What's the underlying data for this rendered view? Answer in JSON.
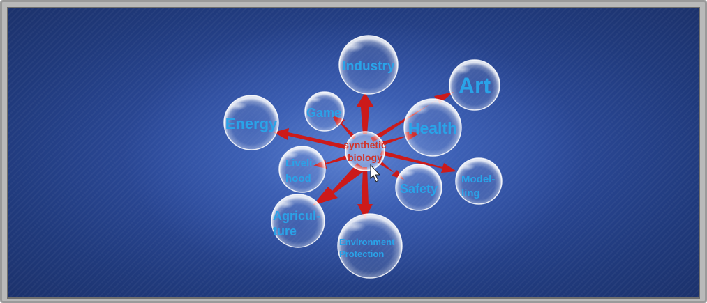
{
  "diagram": {
    "center": {
      "line1": "synthetic",
      "line2": "biology"
    },
    "nodes": {
      "industry": "Industry",
      "art": "Art",
      "game": "Game",
      "health": "Health",
      "energy": "Energy",
      "livelihood": [
        "Liveli-",
        "hood"
      ],
      "safety": "Safety",
      "modeling": [
        "Model-",
        "ling"
      ],
      "agriculture": [
        "Agricul-",
        "ture"
      ],
      "environment": [
        "Environment",
        "Protection"
      ]
    }
  },
  "colors": {
    "label": "#2aa3e8",
    "center_label": "#d0342c",
    "arrow": "#cc1a1a",
    "background": "#2c4a99"
  }
}
